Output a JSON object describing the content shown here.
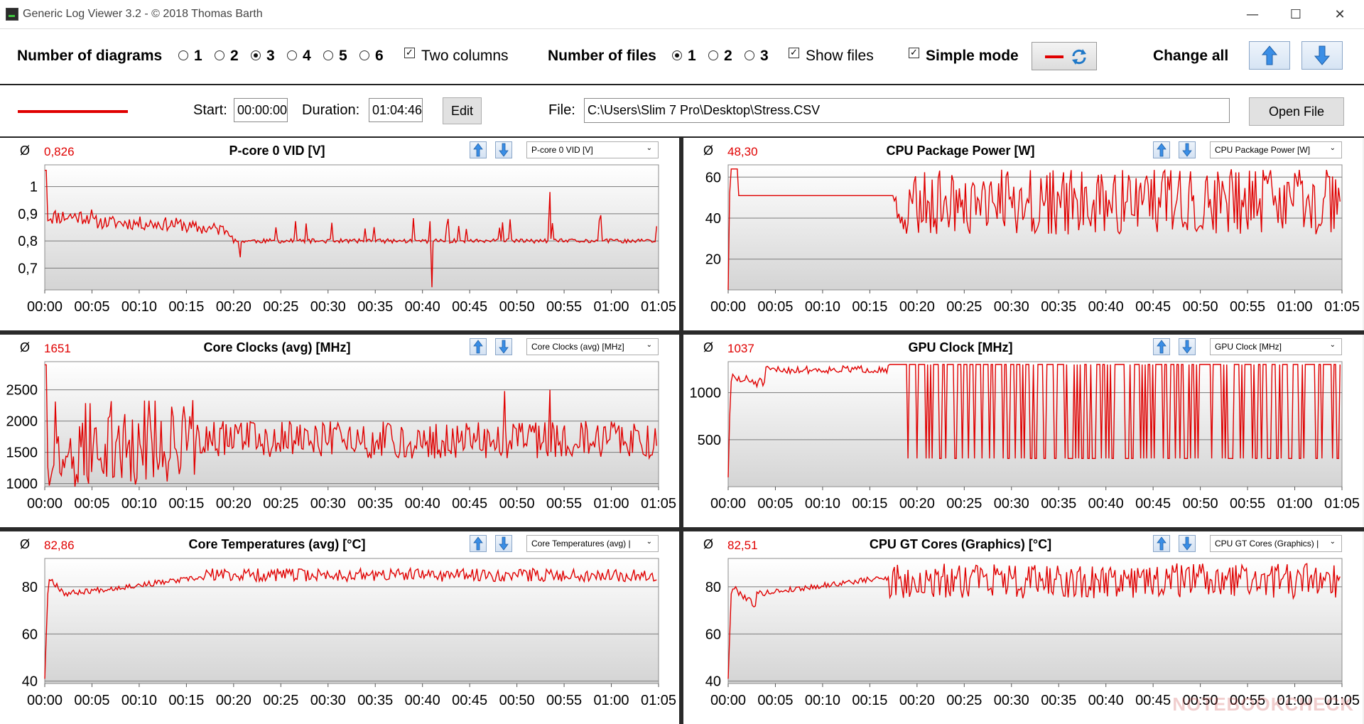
{
  "window": {
    "title": "Generic Log Viewer 3.2 - © 2018 Thomas Barth",
    "controls": [
      "—",
      "☐",
      "✕"
    ]
  },
  "toolbar": {
    "num_diagrams_label": "Number of diagrams",
    "diagram_options": [
      "1",
      "2",
      "3",
      "4",
      "5",
      "6"
    ],
    "diagram_selected": "3",
    "two_columns_label": "Two columns",
    "two_columns_checked": true,
    "num_files_label": "Number of files",
    "file_options": [
      "1",
      "2",
      "3"
    ],
    "file_selected": "1",
    "show_files_label": "Show files",
    "show_files_checked": true,
    "simple_mode_label": "Simple mode",
    "simple_mode_checked": true,
    "change_all_label": "Change all",
    "check_mark": "✓"
  },
  "file_row": {
    "start_label": "Start:",
    "start_value": "00:00:00",
    "duration_label": "Duration:",
    "duration_value": "01:04:46",
    "edit_label": "Edit",
    "file_label": "File:",
    "file_path": "C:\\Users\\Slim 7 Pro\\Desktop\\Stress.CSV",
    "open_label": "Open File",
    "line_color": "#e00000"
  },
  "avg_symbol": "Ø",
  "x_ticks": [
    "00:00",
    "00:05",
    "00:10",
    "00:15",
    "00:20",
    "00:25",
    "00:30",
    "00:35",
    "00:40",
    "00:45",
    "00:50",
    "00:55",
    "01:00",
    "01:05"
  ],
  "panels": [
    {
      "title": "P-core 0 VID [V]",
      "avg": "0,826",
      "combo": "P-core 0 VID [V]"
    },
    {
      "title": "CPU Package Power [W]",
      "avg": "48,30",
      "combo": "CPU Package Power [W]"
    },
    {
      "title": "Core Clocks (avg) [MHz]",
      "avg": "1651",
      "combo": "Core Clocks (avg) [MHz]"
    },
    {
      "title": "GPU Clock [MHz]",
      "avg": "1037",
      "combo": "GPU Clock [MHz]"
    },
    {
      "title": "Core Temperatures (avg) [°C]",
      "avg": "82,86",
      "combo": "Core Temperatures (avg) |"
    },
    {
      "title": "CPU GT Cores (Graphics) [°C]",
      "avg": "82,51",
      "combo": "CPU GT Cores (Graphics) |"
    }
  ],
  "chart_data": [
    {
      "type": "line",
      "title": "P-core 0 VID [V]",
      "ylim": [
        0.62,
        1.08
      ],
      "y_ticks": [
        {
          "v": 1.0,
          "label": "1"
        },
        {
          "v": 0.9,
          "label": "0,9"
        },
        {
          "v": 0.8,
          "label": "0,8"
        },
        {
          "v": 0.7,
          "label": "0,7"
        }
      ],
      "x_unit": "minutes",
      "xlim": [
        0,
        65
      ],
      "seed": 11,
      "series": [
        {
          "segments": [
            {
              "x0": 0,
              "x1": 0.3,
              "a": 1.06,
              "b": 1.06
            },
            {
              "x0": 0.3,
              "x1": 5,
              "a": 0.89,
              "b": 0.89,
              "noise": 0.03
            },
            {
              "x0": 5,
              "x1": 15,
              "a": 0.87,
              "b": 0.86,
              "noise": 0.025
            },
            {
              "x0": 15,
              "x1": 20,
              "a": 0.85,
              "b": 0.84,
              "noise": 0.025
            },
            {
              "x0": 20,
              "x1": 65,
              "a": 0.8,
              "b": 0.8,
              "noise": 0.008,
              "spike": 0.09,
              "spikeP": 0.07
            }
          ],
          "events": [
            {
              "x": 41,
              "y": 0.63
            },
            {
              "x": 53.5,
              "y": 0.98
            },
            {
              "x": 20.7,
              "y": 0.74
            }
          ]
        }
      ]
    },
    {
      "type": "line",
      "title": "CPU Package Power [W]",
      "ylim": [
        5,
        66
      ],
      "y_ticks": [
        {
          "v": 60,
          "label": "60"
        },
        {
          "v": 40,
          "label": "40"
        },
        {
          "v": 20,
          "label": "20"
        }
      ],
      "x_unit": "minutes",
      "xlim": [
        0,
        65
      ],
      "seed": 23,
      "series": [
        {
          "segments": [
            {
              "x0": 0,
              "x1": 0.2,
              "a": 5,
              "b": 64
            },
            {
              "x0": 0.2,
              "x1": 1,
              "a": 64,
              "b": 64
            },
            {
              "x0": 1,
              "x1": 17.5,
              "a": 51,
              "b": 51
            },
            {
              "x0": 17.5,
              "x1": 65,
              "a": 48,
              "b": 48,
              "osc": [
                32,
                64
              ],
              "period": 0.7
            }
          ]
        }
      ]
    },
    {
      "type": "line",
      "title": "Core Clocks (avg) [MHz]",
      "ylim": [
        950,
        2950
      ],
      "y_ticks": [
        {
          "v": 2500,
          "label": "2500"
        },
        {
          "v": 2000,
          "label": "2000"
        },
        {
          "v": 1500,
          "label": "1500"
        },
        {
          "v": 1000,
          "label": "1000"
        }
      ],
      "x_unit": "minutes",
      "xlim": [
        0,
        65
      ],
      "seed": 37,
      "series": [
        {
          "segments": [
            {
              "x0": 0,
              "x1": 0.2,
              "a": 2900,
              "b": 2900
            },
            {
              "x0": 0.2,
              "x1": 16,
              "a": 1650,
              "b": 1650,
              "osc": [
                950,
                2350
              ],
              "period": 0.5
            },
            {
              "x0": 16,
              "x1": 65,
              "a": 1650,
              "b": 1650,
              "osc": [
                1400,
                2000
              ],
              "period": 0.7
            }
          ],
          "events": [
            {
              "x": 48.7,
              "y": 2480
            },
            {
              "x": 53.5,
              "y": 2500
            }
          ]
        }
      ]
    },
    {
      "type": "line",
      "title": "GPU Clock [MHz]",
      "ylim": [
        0,
        1330
      ],
      "y_ticks": [
        {
          "v": 1000,
          "label": "1000"
        },
        {
          "v": 500,
          "label": "500"
        }
      ],
      "x_unit": "minutes",
      "xlim": [
        0,
        65
      ],
      "seed": 51,
      "series": [
        {
          "segments": [
            {
              "x0": 0,
              "x1": 0.3,
              "a": 100,
              "b": 1300
            },
            {
              "x0": 0.3,
              "x1": 4,
              "a": 1150,
              "b": 1100,
              "noise": 60
            },
            {
              "x0": 4,
              "x1": 17,
              "a": 1240,
              "b": 1250,
              "noise": 40
            },
            {
              "x0": 17,
              "x1": 65,
              "a": 1300,
              "b": 1300,
              "drop": 300,
              "dropP": 0.35
            }
          ]
        }
      ]
    },
    {
      "type": "line",
      "title": "Core Temperatures (avg) [°C]",
      "ylim": [
        39,
        92
      ],
      "y_ticks": [
        {
          "v": 80,
          "label": "80"
        },
        {
          "v": 60,
          "label": "60"
        },
        {
          "v": 40,
          "label": "40"
        }
      ],
      "x_unit": "minutes",
      "xlim": [
        0,
        65
      ],
      "seed": 67,
      "series": [
        {
          "segments": [
            {
              "x0": 0,
              "x1": 0.4,
              "a": 41,
              "b": 86
            },
            {
              "x0": 0.4,
              "x1": 2,
              "a": 84,
              "b": 78,
              "noise": 1.5
            },
            {
              "x0": 2,
              "x1": 17,
              "a": 77,
              "b": 84,
              "noise": 1.2
            },
            {
              "x0": 17,
              "x1": 65,
              "a": 85,
              "b": 85,
              "noise": 2.8
            }
          ]
        }
      ]
    },
    {
      "type": "line",
      "title": "CPU GT Cores (Graphics) [°C]",
      "ylim": [
        39,
        92
      ],
      "y_ticks": [
        {
          "v": 80,
          "label": "80"
        },
        {
          "v": 60,
          "label": "60"
        },
        {
          "v": 40,
          "label": "40"
        }
      ],
      "x_unit": "minutes",
      "xlim": [
        0,
        65
      ],
      "seed": 79,
      "series": [
        {
          "segments": [
            {
              "x0": 0,
              "x1": 0.4,
              "a": 41,
              "b": 86
            },
            {
              "x0": 0.4,
              "x1": 3,
              "a": 80,
              "b": 72,
              "noise": 1.5
            },
            {
              "x0": 3,
              "x1": 17,
              "a": 77,
              "b": 84,
              "noise": 1.2
            },
            {
              "x0": 17,
              "x1": 65,
              "a": 84,
              "b": 84,
              "osc": [
                75,
                90
              ],
              "period": 0.6
            }
          ]
        }
      ]
    }
  ],
  "watermark": "NOTEBOOKCHECK"
}
